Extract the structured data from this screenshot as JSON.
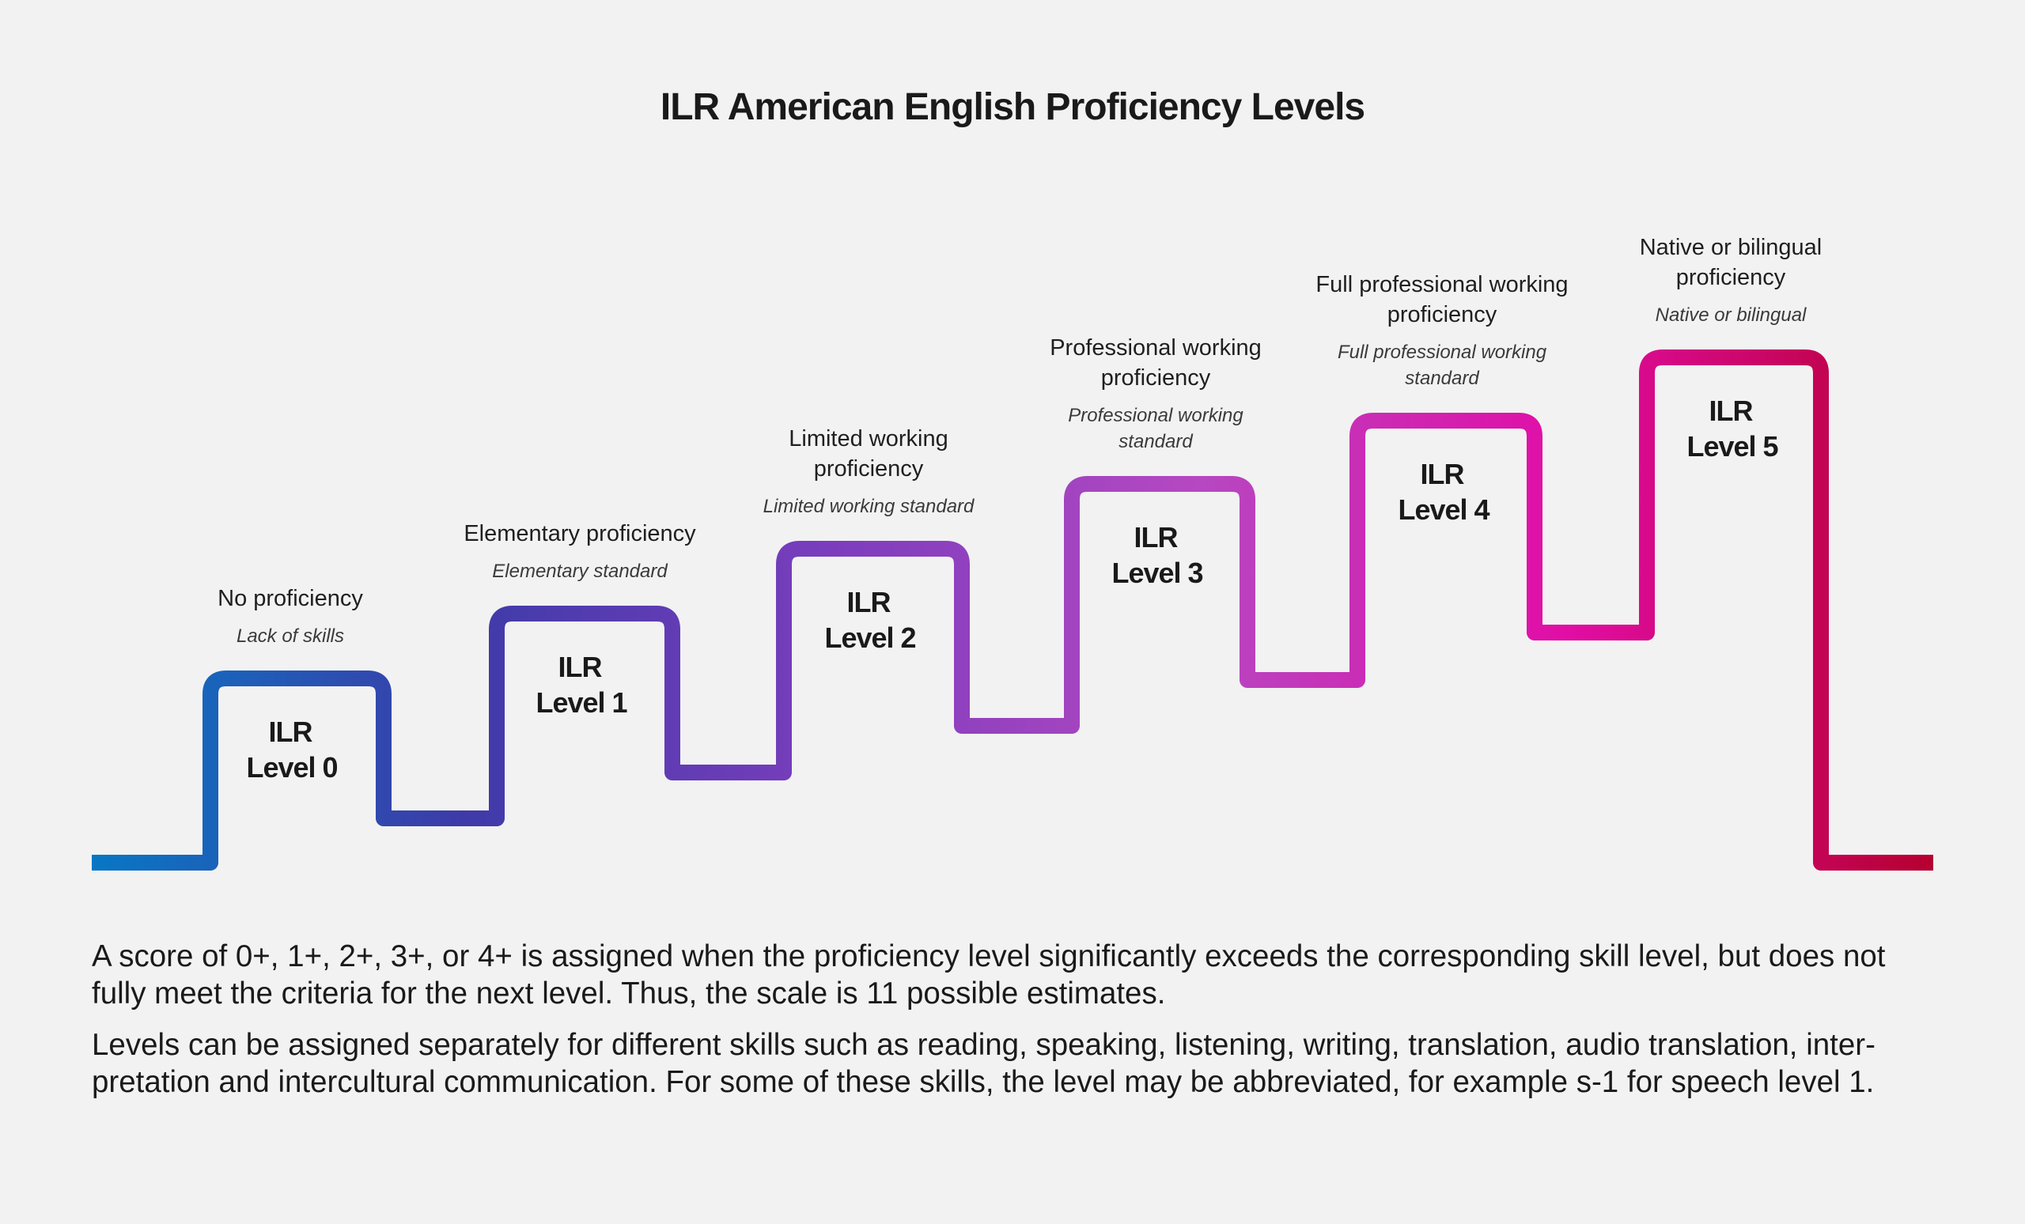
{
  "title": "ILR American English Proficiency Levels",
  "colors": {
    "gradient": [
      "#0877c4",
      "#3d3ba8",
      "#7b3dbd",
      "#b648c2",
      "#e20da6",
      "#b5002f"
    ],
    "background": "#f2f2f2"
  },
  "levels": [
    {
      "line1": "ILR",
      "line2": "Level 0",
      "name": [
        "No proficiency"
      ],
      "standard": [
        "Lack of skills"
      ]
    },
    {
      "line1": "ILR",
      "line2": "Level 1",
      "name": [
        "Elementary proficiency"
      ],
      "standard": [
        "Elementary standard"
      ]
    },
    {
      "line1": "ILR",
      "line2": "Level 2",
      "name": [
        "Limited working",
        "proficiency"
      ],
      "standard": [
        "Limited working standard"
      ]
    },
    {
      "line1": "ILR",
      "line2": "Level 3",
      "name": [
        "Professional working",
        "proficiency"
      ],
      "standard": [
        "Professional working",
        "standard"
      ]
    },
    {
      "line1": "ILR",
      "line2": "Level 4",
      "name": [
        "Full professional working",
        "proficiency"
      ],
      "standard": [
        "Full professional working",
        "standard"
      ]
    },
    {
      "line1": "ILR",
      "line2": "Level 5",
      "name": [
        "Native or bilingual",
        "proficiency"
      ],
      "standard": [
        "Native or bilingual"
      ]
    }
  ],
  "notes": [
    "A score of 0+, 1+, 2+, 3+, or 4+ is assigned when the proficiency level significantly exceeds the corresponding skill level, but does not fully meet the criteria for the next level. Thus, the scale is 11 possible estimates.",
    "Levels can be assigned separately for different skills such as reading, speaking, listening, writing, translation, audio translation, inter­pretation and intercultural communication. For some of these skills, the level may be abbreviated, for example s-1 for speech level 1."
  ]
}
